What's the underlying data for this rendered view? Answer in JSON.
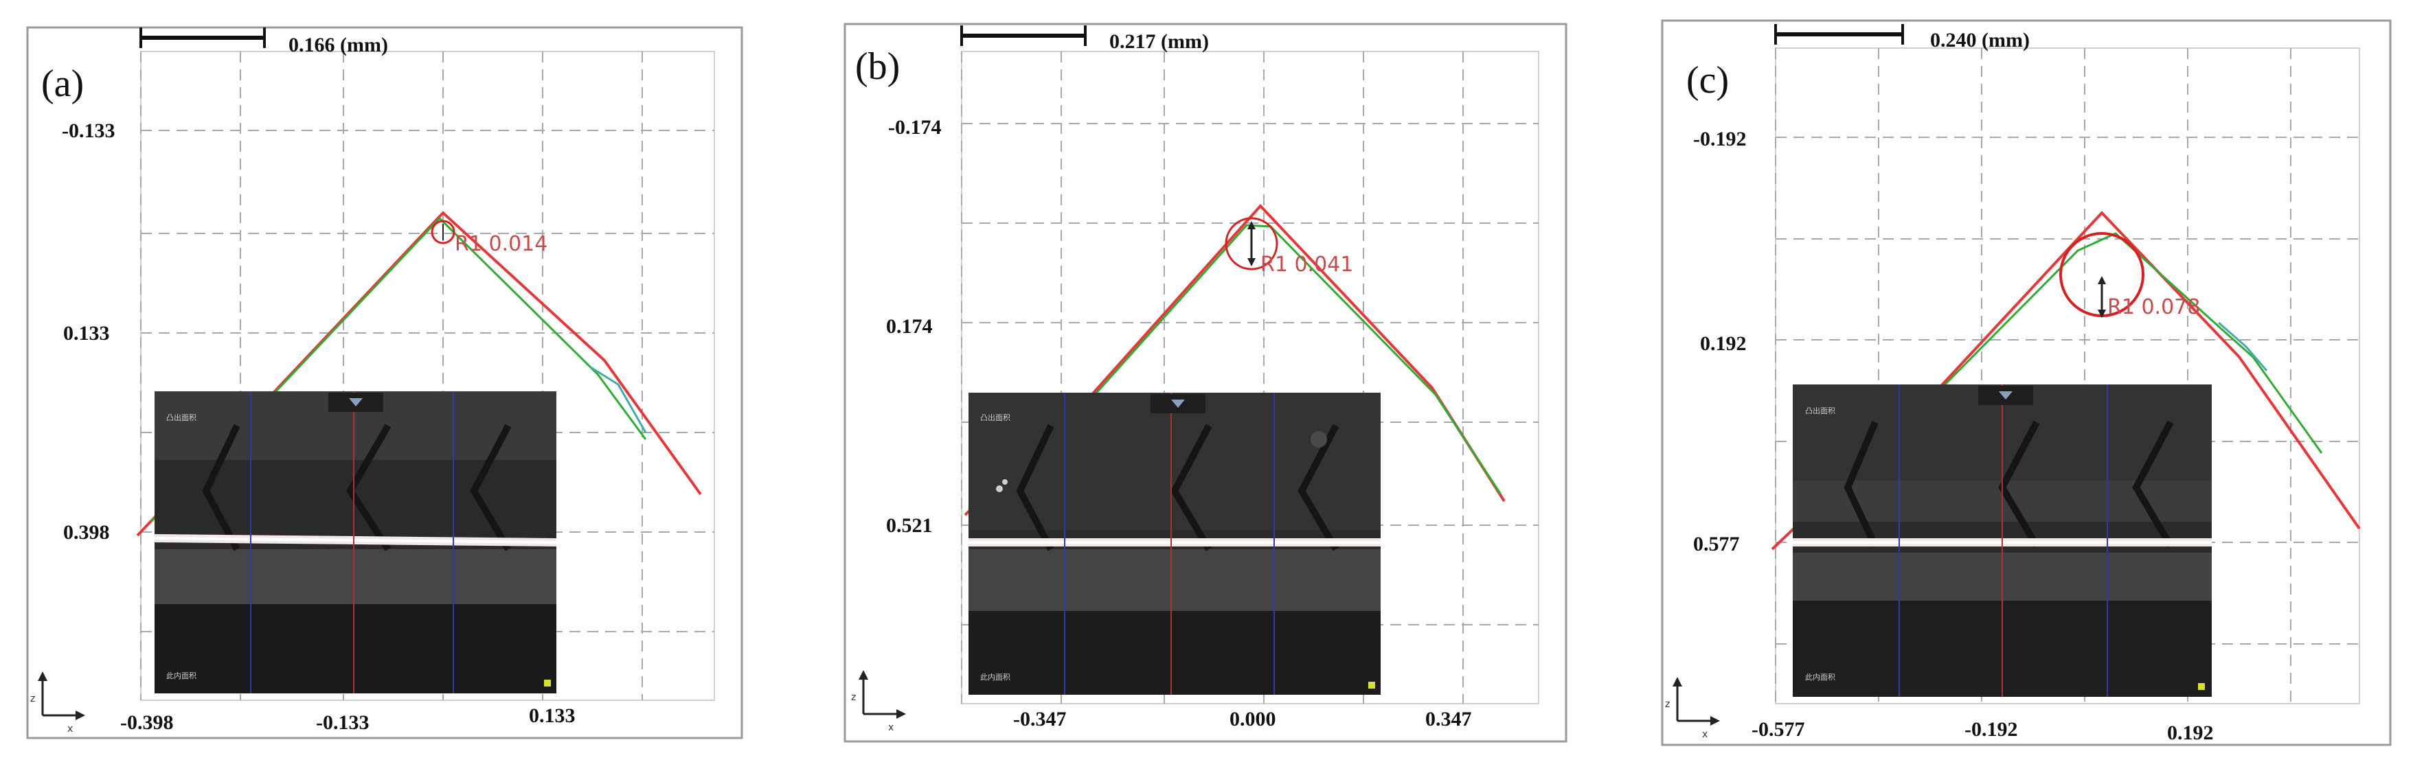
{
  "panels": [
    {
      "label": "(a)",
      "scale_label": "0.166 (mm)",
      "radius_label": "R1 0.014",
      "y_ticks": [
        "-0.133",
        "0.133",
        "0.398"
      ],
      "x_ticks": [
        "-0.398",
        "-0.133",
        "0.133"
      ],
      "inset_top_label": "凸出面积",
      "inset_bottom_label": "此内面积"
    },
    {
      "label": "(b)",
      "scale_label": "0.217 (mm)",
      "radius_label": "R1 0.041",
      "y_ticks": [
        "-0.174",
        "0.174",
        "0.521"
      ],
      "x_ticks": [
        "-0.347",
        "0.000",
        "0.347"
      ],
      "inset_top_label": "凸出面积",
      "inset_bottom_label": "此内面积"
    },
    {
      "label": "(c)",
      "scale_label": "0.240 (mm)",
      "radius_label": "R1 0.078",
      "y_ticks": [
        "-0.192",
        "0.192",
        "0.577"
      ],
      "x_ticks": [
        "-0.577",
        "-0.192",
        "0.192"
      ],
      "inset_top_label": "凸出面积",
      "inset_bottom_label": "此内面积"
    }
  ],
  "axis_indicator": {
    "x": "x",
    "z": "z"
  },
  "colors": {
    "profile_red": "#e23a3a",
    "measured_green": "#33aa33",
    "measured_cyan": "#44aaaa",
    "circle_red": "#d42222",
    "radius_text": "#c64c4c"
  },
  "chart_data": [
    {
      "type": "line",
      "title": "",
      "xlabel": "",
      "ylabel": "",
      "x_tick_labels": [
        "-0.398",
        "-0.133",
        "0.133"
      ],
      "y_tick_labels": [
        "-0.133",
        "0.133",
        "0.398"
      ],
      "y_axis_inverted": true,
      "grid": true,
      "series": [
        {
          "points": [
            [
              -0.398,
              0.398
            ],
            [
              -0.2,
              0.199
            ],
            [
              0.0,
              -0.108
            ],
            [
              0.2,
              0.22
            ],
            [
              0.4,
              0.33
            ]
          ]
        }
      ],
      "annotation": "R1 0.014"
    },
    {
      "type": "line",
      "title": "",
      "xlabel": "",
      "ylabel": "",
      "x_tick_labels": [
        "-0.347",
        "0.000",
        "0.347"
      ],
      "y_tick_labels": [
        "-0.174",
        "0.174",
        "0.521"
      ],
      "y_axis_inverted": true,
      "grid": true,
      "series": [
        {
          "points": [
            [
              -0.52,
              0.48
            ],
            [
              -0.3,
              0.28
            ],
            [
              0.0,
              -0.05
            ],
            [
              0.3,
              0.28
            ],
            [
              0.44,
              0.47
            ]
          ]
        }
      ],
      "annotation": "R1 0.041"
    },
    {
      "type": "line",
      "title": "",
      "xlabel": "",
      "ylabel": "",
      "x_tick_labels": [
        "-0.577",
        "-0.192",
        "0.192"
      ],
      "y_tick_labels": [
        "-0.192",
        "0.192",
        "0.577"
      ],
      "y_axis_inverted": true,
      "grid": true,
      "series": [
        {
          "points": [
            [
              -0.577,
              0.577
            ],
            [
              -0.3,
              0.29
            ],
            [
              0.0,
              -0.04
            ],
            [
              0.3,
              0.33
            ],
            [
              0.55,
              0.58
            ]
          ]
        }
      ],
      "annotation": "R1 0.078"
    }
  ]
}
